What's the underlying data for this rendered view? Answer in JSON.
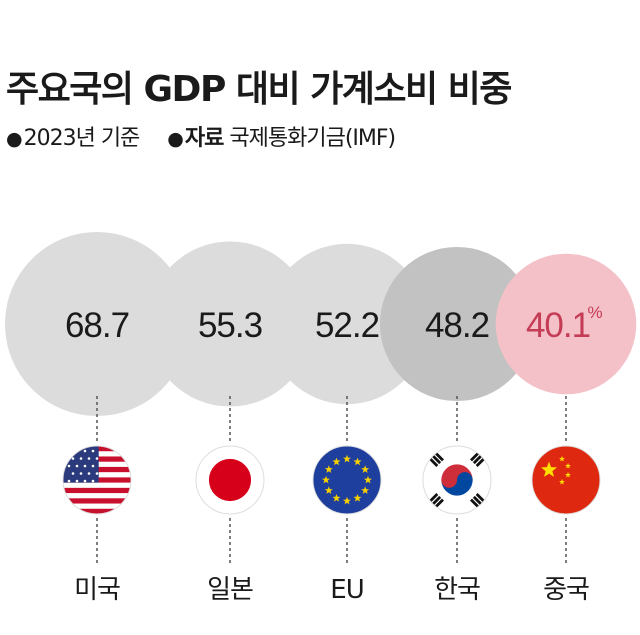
{
  "title": "주요국의 GDP 대비 가계소비 비중",
  "meta": {
    "bullet": "●",
    "year": "2023년 기준",
    "source_label": "자료",
    "source": "국제통화기금(IMF)"
  },
  "chart_data": {
    "type": "bubble",
    "title": "주요국의 GDP 대비 가계소비 비중",
    "unit": "%",
    "categories": [
      "미국",
      "일본",
      "EU",
      "한국",
      "중국"
    ],
    "values": [
      68.7,
      55.3,
      52.2,
      48.2,
      40.1
    ],
    "labels": [
      "68.7",
      "55.3",
      "52.2",
      "48.2",
      "40.1"
    ],
    "highlight": "중국",
    "flags": [
      "us-flag-icon",
      "japan-flag-icon",
      "eu-flag-icon",
      "korea-flag-icon",
      "china-flag-icon"
    ],
    "colors": {
      "default": "#dcdcdc",
      "korea": "#c2c2c2",
      "highlight": "#f5c1c8",
      "highlight_text": "#c43c55",
      "text": "#1a1a1a"
    }
  }
}
